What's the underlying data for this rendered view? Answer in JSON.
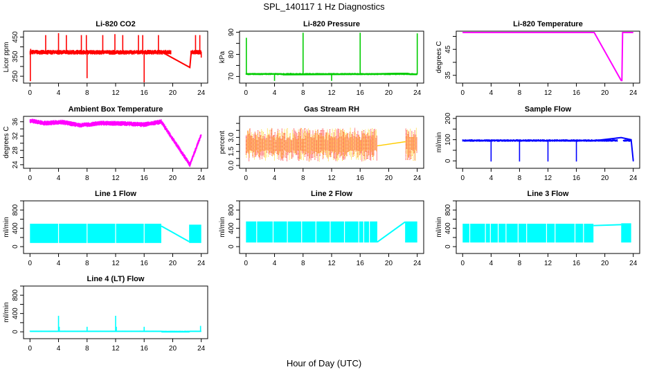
{
  "figure": {
    "title": "SPL_140117  1 Hz Diagnostics",
    "xlabel": "Hour of Day (UTC)"
  },
  "chart_data": [
    {
      "type": "line",
      "title": "Li-820 CO2",
      "ylabel": "Licor ppm",
      "color": "#ff0000",
      "xlim": [
        0,
        24
      ],
      "ylim": [
        215,
        480
      ],
      "xticks": [
        0,
        4,
        8,
        12,
        16,
        20,
        24
      ],
      "yticks": [
        250,
        300,
        350,
        400,
        450
      ],
      "ytick_labels": [
        "250",
        "",
        "350",
        "",
        "450"
      ],
      "baseline": [
        [
          0,
          375
        ],
        [
          18.4,
          375
        ],
        [
          22.4,
          295
        ],
        [
          22.6,
          375
        ],
        [
          24,
          375
        ]
      ],
      "spikes": [
        [
          0.05,
          225
        ],
        [
          0.1,
          390
        ],
        [
          2.2,
          460
        ],
        [
          4.0,
          470
        ],
        [
          5.1,
          460
        ],
        [
          7.2,
          460
        ],
        [
          7.9,
          460
        ],
        [
          8.0,
          240
        ],
        [
          10.2,
          460
        ],
        [
          11.9,
          465
        ],
        [
          13.0,
          460
        ],
        [
          15.2,
          460
        ],
        [
          15.8,
          460
        ],
        [
          16.0,
          210
        ],
        [
          18.0,
          460
        ],
        [
          23.2,
          460
        ],
        [
          23.8,
          460
        ],
        [
          24,
          345
        ]
      ],
      "noise_band": [
        360,
        385
      ]
    },
    {
      "type": "line",
      "title": "Li-820 Pressure",
      "ylabel": "kPa",
      "color": "#00cc00",
      "xlim": [
        0,
        24
      ],
      "ylim": [
        67,
        90.5
      ],
      "xticks": [
        0,
        4,
        8,
        12,
        16,
        20,
        24
      ],
      "yticks": [
        70,
        75,
        80,
        85,
        90
      ],
      "ytick_labels": [
        "70",
        "",
        "80",
        "",
        "90"
      ],
      "baseline": [
        [
          0,
          71.2
        ],
        [
          5,
          71.2
        ],
        [
          5.2,
          70.8
        ],
        [
          16,
          71.0
        ],
        [
          21,
          71.4
        ],
        [
          22.7,
          71.4
        ],
        [
          23,
          70.9
        ],
        [
          24,
          70.9
        ]
      ],
      "spikes": [
        [
          0.05,
          87.5
        ],
        [
          4.0,
          68
        ],
        [
          8.0,
          89.8
        ],
        [
          12.0,
          68
        ],
        [
          16.0,
          89.8
        ],
        [
          24,
          89.5
        ]
      ],
      "noise_band": [
        70.6,
        71.6
      ]
    },
    {
      "type": "line",
      "title": "Li-820 Temperature",
      "ylabel": "degrees C",
      "color": "#ff00ff",
      "xlim": [
        0,
        24
      ],
      "ylim": [
        32,
        52
      ],
      "xticks": [
        0,
        4,
        8,
        12,
        16,
        20,
        24
      ],
      "yticks": [
        35,
        40,
        45,
        50
      ],
      "ytick_labels": [
        "35",
        "",
        "45",
        ""
      ],
      "baseline": [
        [
          0,
          51.5
        ],
        [
          18.5,
          51.5
        ],
        [
          22.3,
          33
        ],
        [
          22.4,
          33
        ],
        [
          22.5,
          51.5
        ],
        [
          24,
          51.5
        ]
      ],
      "spikes": [],
      "noise_band": [
        51.4,
        51.6
      ]
    },
    {
      "type": "line",
      "title": "Ambient Box Temperature",
      "ylabel": "degrees C",
      "color": "#ff00ff",
      "xlim": [
        0,
        24
      ],
      "ylim": [
        23,
        37.5
      ],
      "xticks": [
        0,
        4,
        8,
        12,
        16,
        20,
        24
      ],
      "yticks": [
        24,
        26,
        28,
        30,
        32,
        34,
        36
      ],
      "ytick_labels": [
        "24",
        "",
        "28",
        "",
        "32",
        "",
        "36"
      ],
      "baseline": [
        [
          0,
          36.3
        ],
        [
          2,
          35.6
        ],
        [
          4.5,
          35.9
        ],
        [
          7,
          35.0
        ],
        [
          10,
          35.6
        ],
        [
          13,
          35.5
        ],
        [
          16,
          35.2
        ],
        [
          18.4,
          36.0
        ],
        [
          22.4,
          24
        ],
        [
          24,
          32.4
        ]
      ],
      "spikes": [],
      "noise_band": [
        -0.7,
        0.7
      ]
    },
    {
      "type": "line",
      "title": "Gas Stream RH",
      "ylabel": "percent",
      "color": "#ffcc00",
      "secondary_color": "#ff0000",
      "xlim": [
        0,
        24
      ],
      "ylim": [
        -0.2,
        3.5
      ],
      "xticks": [
        0,
        4,
        8,
        12,
        16,
        20,
        24
      ],
      "yticks": [
        0.0,
        0.5,
        1.0,
        1.5,
        2.0,
        2.5,
        3.0
      ],
      "ytick_labels": [
        "0.0",
        "",
        "1.5",
        "",
        "3.0"
      ],
      "ytick_values_labeled": [
        0.0,
        1.5,
        3.0
      ],
      "baseline": [
        [
          0,
          1.4
        ],
        [
          18.4,
          1.4
        ],
        [
          22.4,
          1.7
        ],
        [
          24,
          1.7
        ]
      ],
      "spikes": [],
      "noise_band": [
        0.0,
        2.7
      ],
      "gap_range": [
        18.4,
        22.4
      ]
    },
    {
      "type": "line",
      "title": "Sample Flow",
      "ylabel": "ml/min",
      "color": "#0000ff",
      "xlim": [
        0,
        24
      ],
      "ylim": [
        -35,
        210
      ],
      "xticks": [
        0,
        4,
        8,
        12,
        16,
        20,
        24
      ],
      "yticks": [
        0,
        50,
        100,
        150,
        200
      ],
      "ytick_labels": [
        "0",
        "",
        "100",
        "",
        "200"
      ],
      "baseline": [
        [
          0,
          96
        ],
        [
          18.4,
          95
        ],
        [
          22.3,
          110
        ],
        [
          23.7,
          100
        ],
        [
          24,
          0
        ]
      ],
      "spikes": [
        [
          4.0,
          -3
        ],
        [
          8.0,
          -3
        ],
        [
          12.0,
          -3
        ],
        [
          16.0,
          -3
        ],
        [
          24,
          -3
        ]
      ],
      "noise_band": [
        90,
        102
      ]
    },
    {
      "type": "line",
      "title": "Line 1 Flow",
      "ylabel": "ml/min",
      "color": "#00ffff",
      "xlim": [
        0,
        24
      ],
      "ylim": [
        -150,
        1000
      ],
      "xticks": [
        0,
        4,
        8,
        12,
        16,
        20,
        24
      ],
      "yticks": [
        0,
        200,
        400,
        600,
        800,
        1000
      ],
      "ytick_labels": [
        "0",
        "",
        "400",
        "",
        "800",
        ""
      ],
      "baseline": [
        [
          18.4,
          450
        ],
        [
          22.3,
          110
        ]
      ],
      "spikes": [],
      "band_segments": [
        [
          0,
          18.4,
          80,
          500
        ],
        [
          22.3,
          24,
          80,
          480
        ]
      ],
      "gaps": [
        4.0,
        8.0,
        12.0,
        16.0
      ]
    },
    {
      "type": "line",
      "title": "Line 2 Flow",
      "ylabel": "ml/min",
      "color": "#00ffff",
      "xlim": [
        0,
        24
      ],
      "ylim": [
        -150,
        1000
      ],
      "xticks": [
        0,
        4,
        8,
        12,
        16,
        20,
        24
      ],
      "yticks": [
        0,
        200,
        400,
        600,
        800,
        1000
      ],
      "ytick_labels": [
        "0",
        "",
        "400",
        "",
        "800",
        ""
      ],
      "baseline": [
        [
          18.4,
          100
        ],
        [
          22.3,
          540
        ]
      ],
      "spikes": [],
      "band_segments": [
        [
          0,
          18.4,
          90,
          550
        ],
        [
          22.3,
          24,
          90,
          550
        ]
      ],
      "gaps": [
        1.5,
        3.8,
        5.8,
        7.8,
        9.8,
        11.8,
        13.8,
        15.8,
        16.5,
        17.3
      ]
    },
    {
      "type": "line",
      "title": "Line 3 Flow",
      "ylabel": "ml/min",
      "color": "#00ffff",
      "xlim": [
        0,
        24
      ],
      "ylim": [
        -150,
        1000
      ],
      "xticks": [
        0,
        4,
        8,
        12,
        16,
        20,
        24
      ],
      "yticks": [
        0,
        200,
        400,
        600,
        800,
        1000
      ],
      "ytick_labels": [
        "0",
        "",
        "400",
        "",
        "800",
        ""
      ],
      "baseline": [
        [
          18.4,
          460
        ],
        [
          22.3,
          480
        ]
      ],
      "spikes": [
        [
          4.0,
          0
        ],
        [
          12.0,
          0
        ]
      ],
      "band_segments": [
        [
          0,
          18.4,
          90,
          500
        ],
        [
          22.3,
          23.7,
          90,
          510
        ]
      ],
      "gaps": [
        1.0,
        3.2,
        3.9,
        5.0,
        6.1,
        7.8,
        9.0,
        11.8,
        13.0,
        15.8,
        17.0
      ]
    },
    {
      "type": "line",
      "title": "Line 4 (LT) Flow",
      "ylabel": "ml/min",
      "color": "#00ffff",
      "xlim": [
        0,
        24
      ],
      "ylim": [
        -150,
        1000
      ],
      "xticks": [
        0,
        4,
        8,
        12,
        16,
        20,
        24
      ],
      "yticks": [
        0,
        200,
        400,
        600,
        800,
        1000
      ],
      "ytick_labels": [
        "0",
        "",
        "400",
        "",
        "800",
        ""
      ],
      "baseline": [
        [
          0,
          10
        ],
        [
          18.4,
          10
        ],
        [
          18.5,
          0
        ],
        [
          22.3,
          0
        ],
        [
          22.4,
          10
        ],
        [
          24,
          10
        ]
      ],
      "spikes": [
        [
          4.0,
          350
        ],
        [
          4.1,
          110
        ],
        [
          8.0,
          110
        ],
        [
          12.0,
          350
        ],
        [
          12.1,
          110
        ],
        [
          16.0,
          110
        ],
        [
          23.9,
          130
        ]
      ],
      "noise_band": [
        0,
        25
      ]
    }
  ]
}
